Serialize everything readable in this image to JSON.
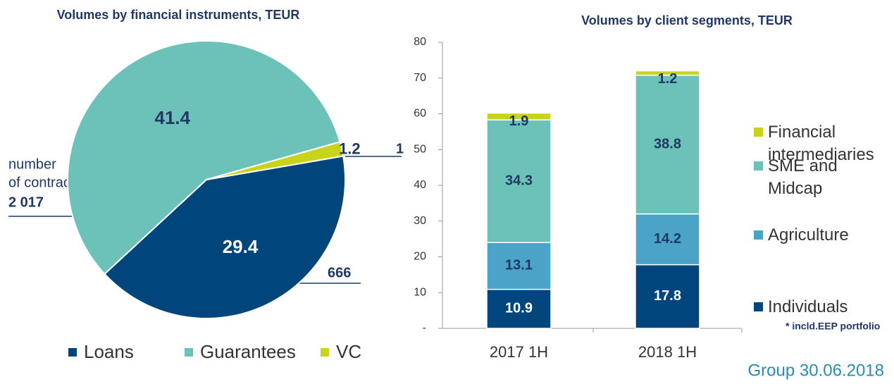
{
  "chart_data": [
    {
      "type": "pie",
      "title": "Volumes by financial instruments,  TEUR",
      "categories": [
        "Loans",
        "Guarantees",
        "VC"
      ],
      "values": [
        29.4,
        41.4,
        1.2
      ],
      "colors": [
        "#00457c",
        "#6cc2b8",
        "#c8d41c"
      ],
      "legend": "bottom",
      "annotations": [
        "number",
        "of contracts",
        "2 017",
        "666",
        "1"
      ]
    },
    {
      "type": "bar",
      "stacked": true,
      "title": "Volumes by client segments, TEUR",
      "categories": [
        "2017 1H",
        "2018 1H"
      ],
      "series": [
        {
          "name": "Individuals",
          "color": "#00457c",
          "values": [
            10.9,
            17.8
          ]
        },
        {
          "name": "Agriculture",
          "color": "#4ba3c7",
          "values": [
            13.1,
            14.2
          ]
        },
        {
          "name": "SME and Midcap",
          "color": "#6cc2b8",
          "values": [
            34.3,
            38.8
          ]
        },
        {
          "name": "Financial intermediaries",
          "color": "#c8d41c",
          "values": [
            1.9,
            1.2
          ]
        }
      ],
      "ylim": [
        0,
        80
      ],
      "yticks": [
        {
          "value": 0,
          "label": "-"
        },
        10,
        20,
        30,
        40,
        50,
        60,
        70,
        80
      ],
      "legend": "right",
      "annotations": [
        "* incld.EEP portfolio"
      ]
    }
  ],
  "footer": "Group 30.06.2018"
}
